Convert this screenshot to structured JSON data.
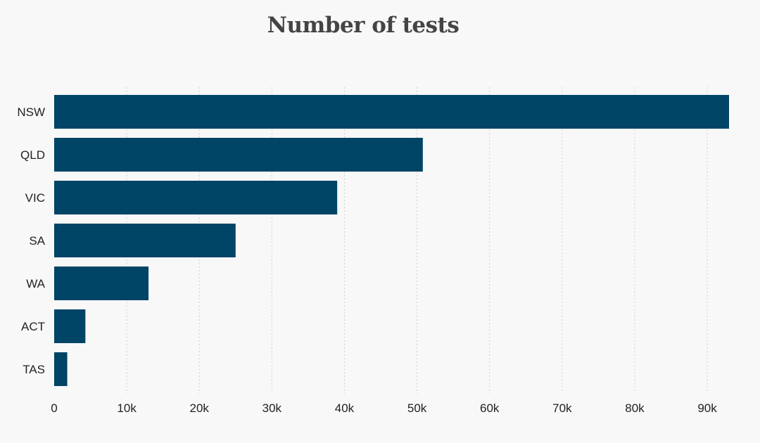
{
  "chart_data": {
    "type": "bar",
    "orientation": "horizontal",
    "title": "Number of tests",
    "xlabel": "",
    "ylabel": "",
    "categories": [
      "NSW",
      "QLD",
      "VIC",
      "SA",
      "WA",
      "ACT",
      "TAS"
    ],
    "values": [
      93000,
      50800,
      39000,
      25000,
      13000,
      4300,
      1800
    ],
    "xlim": [
      0,
      93000
    ],
    "x_ticks": [
      0,
      10000,
      20000,
      30000,
      40000,
      50000,
      60000,
      70000,
      80000,
      90000
    ],
    "x_tick_labels": [
      "0",
      "10k",
      "20k",
      "30k",
      "40k",
      "50k",
      "60k",
      "70k",
      "80k",
      "90k"
    ],
    "grid": "vertical-dotted",
    "bar_color": "#004466"
  }
}
